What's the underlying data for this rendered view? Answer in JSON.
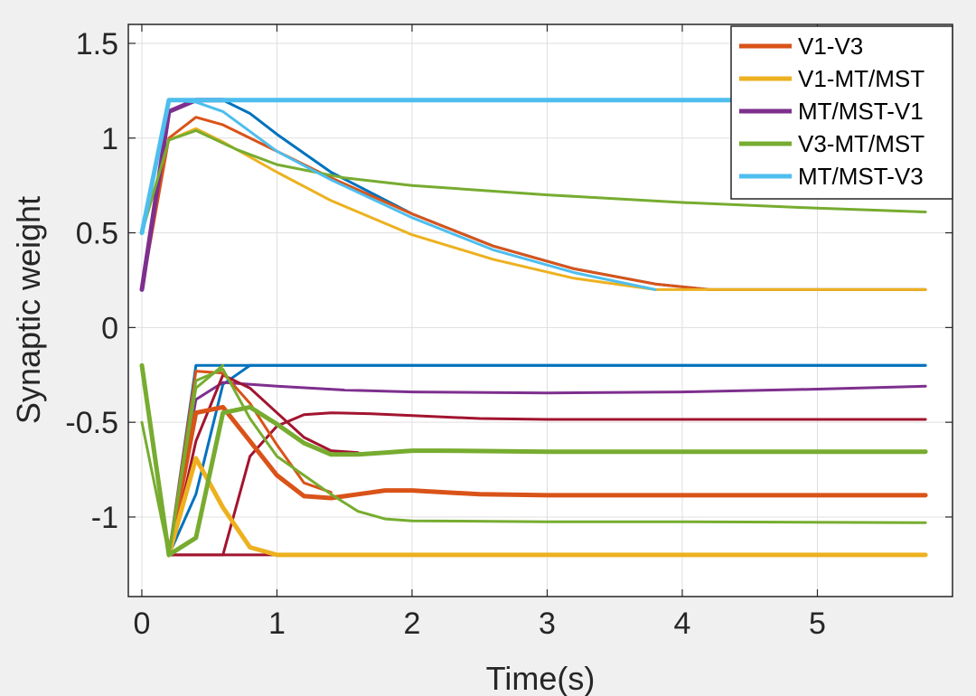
{
  "chart_data": {
    "type": "line",
    "title": "",
    "xlabel": "Time(s)",
    "ylabel": "Synaptic weight",
    "xlim": [
      -0.1,
      6.0
    ],
    "ylim": [
      -1.42,
      1.6
    ],
    "xticks": [
      0,
      1,
      2,
      3,
      4,
      5
    ],
    "xtick_labels": [
      "0",
      "1",
      "2",
      "3",
      "4",
      "5"
    ],
    "yticks": [
      -1,
      -0.5,
      0,
      0.5,
      1,
      1.5
    ],
    "ytick_labels": [
      "-1",
      "-0.5",
      "0",
      "0.5",
      "1",
      "1.5"
    ],
    "grid": true,
    "legend_position": "top-right",
    "colors": {
      "V1-V3": "#d95319",
      "V1-MT/MST": "#edb120",
      "MT/MST-V1": "#7e2f8e",
      "V3-MT/MST": "#77ac30",
      "MT/MST-V3": "#4dbeee",
      "blue": "#0072bd",
      "darkred": "#a2142f",
      "background": "#f0f0f0"
    },
    "legend": [
      {
        "label": "V1-V3",
        "color": "#d95319"
      },
      {
        "label": "V1-MT/MST",
        "color": "#edb120"
      },
      {
        "label": "MT/MST-V1",
        "color": "#7e2f8e"
      },
      {
        "label": "V3-MT/MST",
        "color": "#77ac30"
      },
      {
        "label": "MT/MST-V3",
        "color": "#4dbeee"
      }
    ],
    "series": [
      {
        "name": "blue-pos",
        "color": "#0072bd",
        "width": 3,
        "x": [
          0,
          0.2,
          0.4,
          0.6,
          0.8,
          1.0,
          1.4,
          2.0,
          2.6,
          3.2,
          3.8,
          4.2,
          5.8
        ],
        "y": [
          0.5,
          1.2,
          1.2,
          1.2,
          1.13,
          1.02,
          0.82,
          0.6,
          0.43,
          0.31,
          0.23,
          0.2,
          0.2
        ]
      },
      {
        "name": "V1-V3 pos a",
        "color": "#d95319",
        "width": 3,
        "x": [
          0,
          0.2,
          0.4,
          0.6,
          1.0,
          1.4,
          2.0,
          2.6,
          3.2,
          3.8,
          4.2,
          5.8
        ],
        "y": [
          0.2,
          1.0,
          1.11,
          1.07,
          0.93,
          0.79,
          0.6,
          0.43,
          0.31,
          0.23,
          0.2,
          0.2
        ]
      },
      {
        "name": "V1-MT/MST pos",
        "color": "#edb120",
        "width": 3,
        "x": [
          0,
          0.2,
          0.4,
          0.6,
          1.0,
          1.4,
          2.0,
          2.6,
          3.2,
          3.8,
          5.8
        ],
        "y": [
          0.5,
          0.99,
          1.05,
          0.98,
          0.82,
          0.67,
          0.49,
          0.36,
          0.26,
          0.2,
          0.2
        ]
      },
      {
        "name": "MT/MST-V1 pos",
        "color": "#7e2f8e",
        "width": 5,
        "x": [
          0,
          0.2,
          0.4,
          0.6
        ],
        "y": [
          0.2,
          1.14,
          1.2,
          1.2
        ]
      },
      {
        "name": "V3-MT/MST pos",
        "color": "#77ac30",
        "width": 3,
        "x": [
          0,
          0.2,
          0.4,
          0.7,
          1.0,
          1.5,
          2.0,
          3.0,
          4.0,
          5.0,
          5.8
        ],
        "y": [
          0.5,
          0.99,
          1.04,
          0.94,
          0.86,
          0.79,
          0.75,
          0.7,
          0.66,
          0.63,
          0.61
        ]
      },
      {
        "name": "MT/MST-V3 pos curve",
        "color": "#4dbeee",
        "width": 3,
        "x": [
          0,
          0.2,
          0.4,
          0.6,
          1.0,
          1.4,
          2.0,
          2.6,
          3.2,
          3.8
        ],
        "y": [
          0.5,
          1.2,
          1.19,
          1.14,
          0.93,
          0.78,
          0.58,
          0.41,
          0.29,
          0.2
        ]
      },
      {
        "name": "MT/MST-V3 pos flat",
        "color": "#4dbeee",
        "width": 5,
        "x": [
          0,
          0.2,
          5.8
        ],
        "y": [
          0.5,
          1.2,
          1.2
        ]
      },
      {
        "name": "blue-neg a",
        "color": "#0072bd",
        "width": 3,
        "x": [
          0.2,
          0.4,
          0.6,
          5.8
        ],
        "y": [
          -1.2,
          -0.2,
          -0.2,
          -0.2
        ]
      },
      {
        "name": "blue-neg b",
        "color": "#0072bd",
        "width": 3,
        "x": [
          0.2,
          0.4,
          0.6,
          0.8,
          5.8
        ],
        "y": [
          -1.2,
          -0.88,
          -0.3,
          -0.2,
          -0.2
        ]
      },
      {
        "name": "MT/MST-V1 neg",
        "color": "#7e2f8e",
        "width": 3,
        "x": [
          0.2,
          0.4,
          0.6,
          1.0,
          1.5,
          2.0,
          3.0,
          4.0,
          5.0,
          5.8
        ],
        "y": [
          -1.2,
          -0.38,
          -0.29,
          -0.31,
          -0.33,
          -0.34,
          -0.345,
          -0.34,
          -0.325,
          -0.31
        ]
      },
      {
        "name": "darkred a",
        "color": "#a2142f",
        "width": 3,
        "x": [
          0.2,
          0.6,
          0.8,
          1.0,
          1.2,
          1.4,
          1.7,
          2.0,
          2.5,
          3.0,
          4.0,
          5.8
        ],
        "y": [
          -1.2,
          -1.2,
          -0.68,
          -0.52,
          -0.46,
          -0.45,
          -0.455,
          -0.465,
          -0.48,
          -0.485,
          -0.485,
          -0.485
        ]
      },
      {
        "name": "darkred b",
        "color": "#a2142f",
        "width": 3,
        "x": [
          0.2,
          0.3,
          0.4,
          0.6,
          0.8,
          1.0,
          1.2,
          1.4,
          1.6
        ],
        "y": [
          -1.2,
          -0.92,
          -0.6,
          -0.25,
          -0.32,
          -0.45,
          -0.58,
          -0.65,
          -0.66
        ]
      },
      {
        "name": "darkred c",
        "color": "#a2142f",
        "width": 3,
        "x": [
          0.2,
          1.0
        ],
        "y": [
          -1.2,
          -1.2
        ]
      },
      {
        "name": "V1-V3 neg a",
        "color": "#d95319",
        "width": 5,
        "x": [
          0.2,
          0.4,
          0.6,
          0.8,
          1.0,
          1.2,
          1.4,
          1.6,
          1.8,
          2.0,
          2.5,
          3.0,
          4.0,
          5.8
        ],
        "y": [
          -1.2,
          -0.45,
          -0.42,
          -0.6,
          -0.78,
          -0.89,
          -0.9,
          -0.88,
          -0.86,
          -0.86,
          -0.88,
          -0.885,
          -0.885,
          -0.885
        ]
      },
      {
        "name": "V1-V3 neg b",
        "color": "#d95319",
        "width": 3,
        "x": [
          0.2,
          0.4,
          0.6,
          0.8,
          1.0,
          1.2,
          1.4
        ],
        "y": [
          -1.2,
          -0.23,
          -0.24,
          -0.4,
          -0.62,
          -0.82,
          -0.87
        ]
      },
      {
        "name": "V1-MT/MST neg",
        "color": "#edb120",
        "width": 5,
        "x": [
          0.2,
          0.4,
          0.6,
          0.8,
          1.0,
          5.8
        ],
        "y": [
          -1.2,
          -0.69,
          -0.95,
          -1.16,
          -1.2,
          -1.2
        ]
      },
      {
        "name": "V3-MT/MST neg thick",
        "color": "#77ac30",
        "width": 5,
        "x": [
          0,
          0.2,
          0.4,
          0.6,
          0.8,
          1.0,
          1.2,
          1.4,
          1.6,
          1.8,
          2.0,
          2.2,
          3.0,
          4.0,
          5.8
        ],
        "y": [
          -0.2,
          -1.2,
          -1.11,
          -0.45,
          -0.42,
          -0.51,
          -0.61,
          -0.67,
          -0.67,
          -0.66,
          -0.65,
          -0.65,
          -0.655,
          -0.655,
          -0.655
        ]
      },
      {
        "name": "V3-MT/MST neg thin",
        "color": "#77ac30",
        "width": 3,
        "x": [
          0,
          0.2,
          0.4,
          0.6,
          0.8,
          1.0,
          1.2,
          1.4,
          1.6,
          1.8,
          2.0,
          3.0,
          4.0,
          5.8
        ],
        "y": [
          -0.5,
          -1.2,
          -0.28,
          -0.22,
          -0.48,
          -0.68,
          -0.78,
          -0.88,
          -0.97,
          -1.01,
          -1.02,
          -1.025,
          -1.025,
          -1.03
        ]
      },
      {
        "name": "V3-MT/MST neg c",
        "color": "#77ac30",
        "width": 3,
        "x": [
          0.2,
          0.4,
          0.6
        ],
        "y": [
          -1.2,
          -0.32,
          -0.2
        ]
      }
    ]
  }
}
